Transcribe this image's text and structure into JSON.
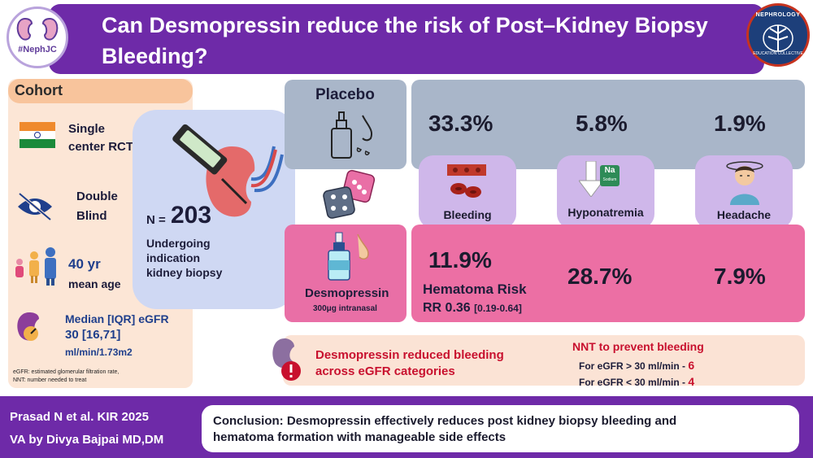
{
  "header": {
    "title": "Can Desmopressin reduce the risk of Post–Kidney Biopsy Bleeding?",
    "left_logo_text": "#NephJC",
    "right_logo_text": "NEPHROLOGY",
    "right_logo_sub": "EDUCATION COLLECTIVE"
  },
  "cohort": {
    "title": "Cohort",
    "design_line1": "Single",
    "design_line2": "center RCT",
    "blind_line1": "Double",
    "blind_line2": "Blind",
    "age_value": "40 yr",
    "age_label": "mean age",
    "egfr_title": "Median [IQR] eGFR",
    "egfr_value": "30 [16,71]",
    "egfr_unit": "ml/min/1.73m2",
    "footnote1": "eGFR: estimated glomerular filtration rate,",
    "footnote2": "NNT: number needed to treat"
  },
  "population": {
    "n_prefix": "N =",
    "n_value": "203",
    "desc_line1": "Undergoing",
    "desc_line2": "indication",
    "desc_line3": "kidney biopsy"
  },
  "placebo": {
    "label": "Placebo",
    "bleeding": "33.3%",
    "hyponatremia": "5.8%",
    "headache": "1.9%"
  },
  "outcomes": {
    "bleeding": "Bleeding",
    "hyponatremia": "Hyponatremia",
    "headache": "Headache",
    "na_badge": "Na",
    "na_sub": "Sodium"
  },
  "desmopressin": {
    "label": "Desmopressin",
    "dose": "300μg intranasal",
    "bleeding": "11.9%",
    "hematoma_label": "Hematoma Risk",
    "rr_label": "RR 0.36",
    "rr_ci": "[0.19-0.64]",
    "hyponatremia": "28.7%",
    "headache": "7.9%"
  },
  "nnt": {
    "finding_line1": "Desmopressin reduced bleeding",
    "finding_line2": "across eGFR categories",
    "title": "NNT to prevent bleeding",
    "row1_label": "For eGFR > 30 ml/min -",
    "row1_value": "6",
    "row2_label": "For eGFR < 30 ml/min -",
    "row2_value": "4"
  },
  "footer": {
    "citation": "Prasad N et al. KIR  2025",
    "va": "VA by Divya Bajpai MD,DM",
    "conclusion_line1": "Conclusion: Desmopressin effectively reduces post kidney biopsy bleeding and",
    "conclusion_line2": "hematoma formation with manageable side effects"
  },
  "colors": {
    "purple": "#6e2aa8",
    "placebo": "#a9b6c9",
    "desmopressin": "#ec6fa4",
    "tile": "#cfb7ea",
    "accent_red": "#c8102e"
  }
}
